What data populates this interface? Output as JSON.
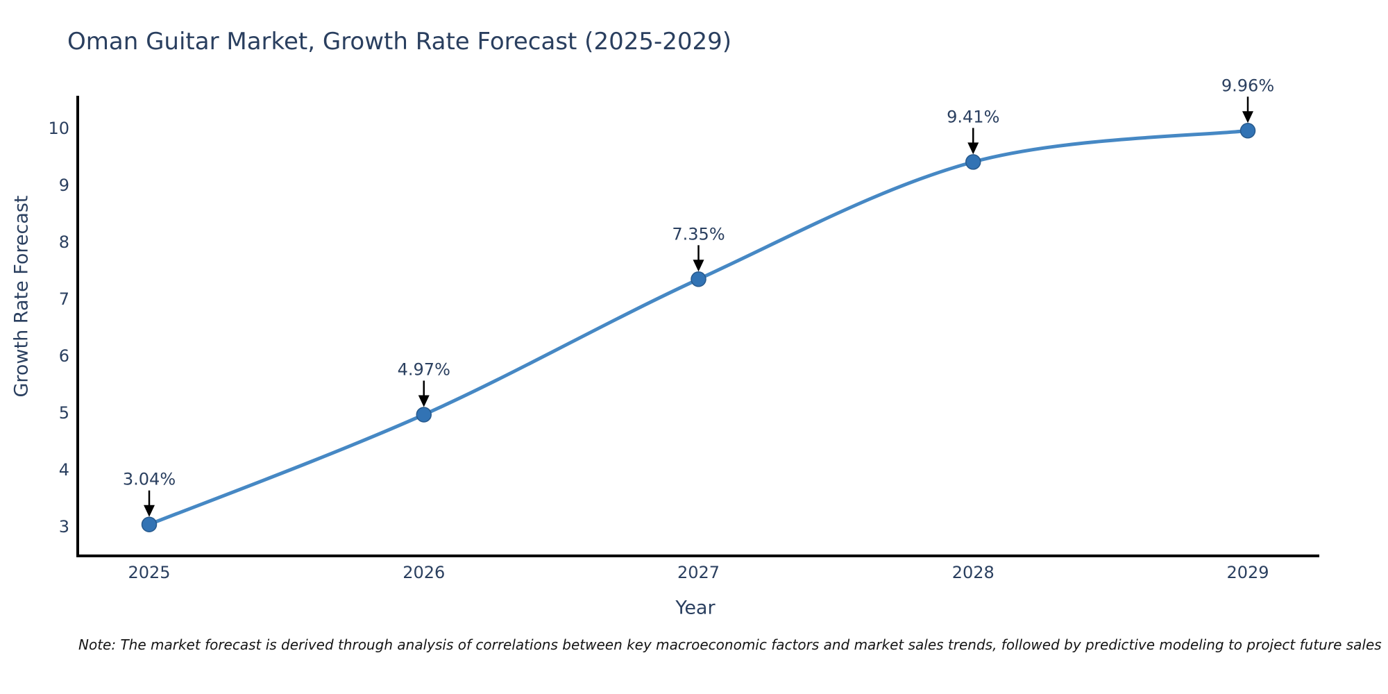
{
  "chart_data": {
    "type": "line",
    "title": "Oman Guitar Market, Growth Rate Forecast (2025-2029)",
    "xlabel": "Year",
    "ylabel": "Growth Rate Forecast",
    "x": [
      2025,
      2026,
      2027,
      2028,
      2029
    ],
    "values": [
      3.04,
      4.97,
      7.35,
      9.41,
      9.96
    ],
    "point_labels": [
      "3.04%",
      "4.97%",
      "7.35%",
      "9.41%",
      "9.96%"
    ],
    "yticks": [
      3,
      4,
      5,
      6,
      7,
      8,
      9,
      10
    ],
    "ylim": [
      2.45,
      10.55
    ],
    "line_shape": "spline",
    "grid": false,
    "legend": "none",
    "line_color": "#4688c4",
    "marker_color": "#3273b4",
    "marker_edge_color": "#27598c",
    "axis_color": "#000000",
    "text_color": "#2a3f5f",
    "arrow_color": "#000000"
  },
  "note": "Note: The market forecast is derived through analysis of correlations between key macroeconomic factors and market sales trends, followed by predictive modeling to project future sales"
}
